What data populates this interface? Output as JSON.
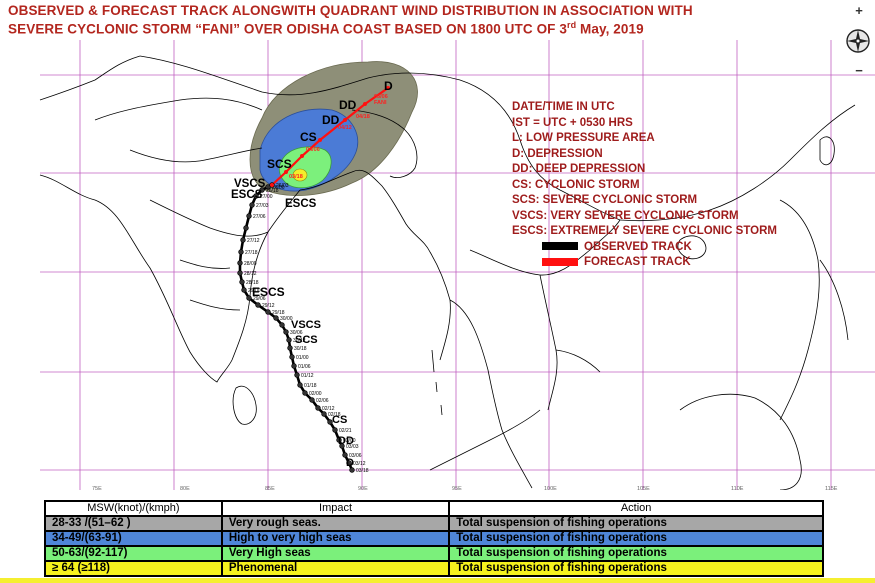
{
  "header": {
    "title_line1": "OBSERVED & FORECAST TRACK ALONGWITH QUADRANT WIND DISTRIBUTION IN ASSOCIATION WITH",
    "title_line2_pre": "SEVERE CYCLONIC STORM “FANI” OVER ODISHA COAST BASED ON 1800 UTC OF 3",
    "title_sup": "rd",
    "title_line2_post": " May, 2019"
  },
  "legend": {
    "lines": [
      "DATE/TIME IN UTC",
      "IST = UTC + 0530 HRS",
      "L: LOW PRESSURE AREA",
      "D: DEPRESSION",
      "DD: DEEP DEPRESSION",
      "CS: CYCLONIC STORM",
      "SCS: SEVERE CYCLONIC STORM",
      "VSCS: VERY SEVERE CYCLONIC STORM",
      "ESCS: EXTREMELY SEVERE CYCLONIC STORM"
    ],
    "observed_label": "OBSERVED TRACK",
    "forecast_label": "FORECAST TRACK",
    "colors": {
      "observed": "#000000",
      "forecast": "#ff1010",
      "text": "#9e1b1b"
    }
  },
  "map": {
    "zoom_in": "+",
    "zoom_out": "−",
    "compass": "compass-icon",
    "lon_ticks": [
      "75E",
      "80E",
      "85E",
      "90E",
      "95E",
      "100E",
      "105E",
      "110E",
      "115E"
    ],
    "observed_stage_labels": [
      "ESCS",
      "VSCS",
      "SCS",
      "CS",
      "DD",
      "D",
      "ESCS",
      "VSCS",
      "ESCS"
    ],
    "forecast_stage_labels": [
      "SCS",
      "CS",
      "DD",
      "D"
    ],
    "forecast_time_labels": [
      "03/18",
      "04/06",
      "04/12",
      "04/18",
      "05/06",
      "FANI"
    ],
    "observed_time_labels": [
      "26/03",
      "26/06",
      "26/18",
      "27/00",
      "27/03",
      "27/06",
      "27/12",
      "27/18",
      "28/00",
      "28/12",
      "28/18",
      "29/00",
      "29/06",
      "29/12",
      "29/18",
      "30/00",
      "30/06",
      "30/12",
      "30/18",
      "01/00",
      "01/06",
      "01/12",
      "01/18",
      "02/00",
      "02/06",
      "02/12",
      "02/18",
      "02/21",
      "03/00",
      "03/03",
      "03/06",
      "03/12",
      "03/18"
    ],
    "colors": {
      "outer_zone": "#8e8f78",
      "zone_34_49": "#4b7bd6",
      "zone_50_63": "#7cf07c",
      "zone_64": "#f3ee2c",
      "land_outline": "#000000",
      "grid": "#c060c0"
    }
  },
  "impact_table": {
    "headers": [
      "MSW(knot)/(kmph)",
      "Impact",
      "Action"
    ],
    "rows": [
      {
        "msw": "28-33 /(51–62 )",
        "impact": "Very rough seas.",
        "action": "Total suspension of fishing operations",
        "color": "#a7a7a7"
      },
      {
        "msw": "34-49/(63-91)",
        "impact": "High to very high seas",
        "action": "Total suspension of fishing operations",
        "color": "#4f86d8"
      },
      {
        "msw": "50-63/(92-117)",
        "impact": "Very High seas",
        "action": "Total suspension of fishing operations",
        "color": "#7bf07b"
      },
      {
        "msw": "≥ 64  (≥118)",
        "impact": "Phenomenal",
        "action": "Total suspension of fishing operations",
        "color": "#f6f21e"
      }
    ]
  }
}
